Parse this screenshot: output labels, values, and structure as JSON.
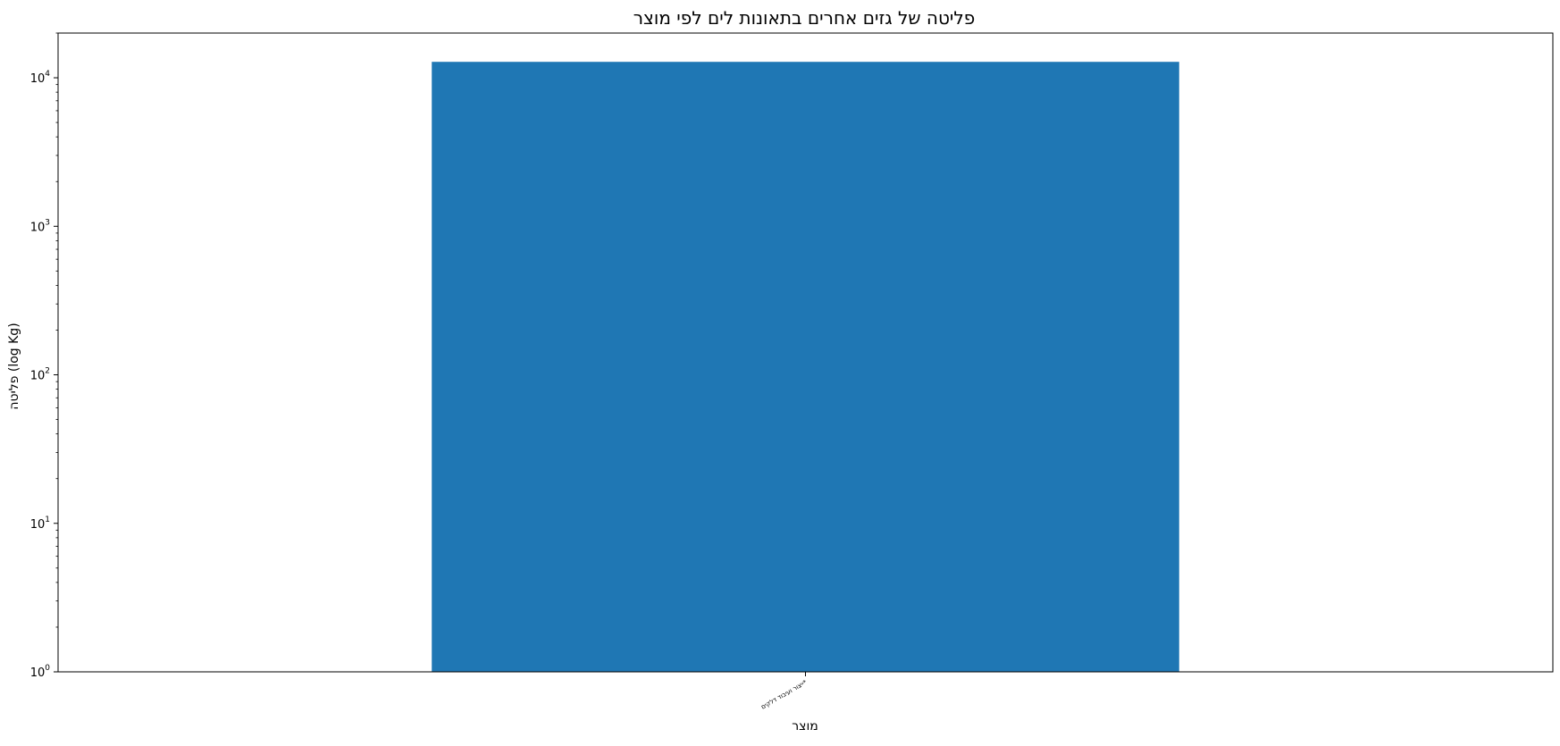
{
  "chart_data": {
    "type": "bar",
    "title": "פליטה של גזים אחרים בתאונות לים לפי מוצר",
    "xlabel": "מוצר",
    "ylabel": "פליטה (log Kg)",
    "yscale": "log",
    "ylim": [
      1,
      20000
    ],
    "categories": [
      "ייצור ועיבוד דלקים*"
    ],
    "values": [
      12800
    ],
    "y_ticks": [
      {
        "value": 1,
        "base": "10",
        "exp": "0"
      },
      {
        "value": 10,
        "base": "10",
        "exp": "1"
      },
      {
        "value": 100,
        "base": "10",
        "exp": "2"
      },
      {
        "value": 1000,
        "base": "10",
        "exp": "3"
      },
      {
        "value": 10000,
        "base": "10",
        "exp": "4"
      }
    ],
    "bar_color": "#1f77b4",
    "grid": false,
    "legend": "none"
  }
}
